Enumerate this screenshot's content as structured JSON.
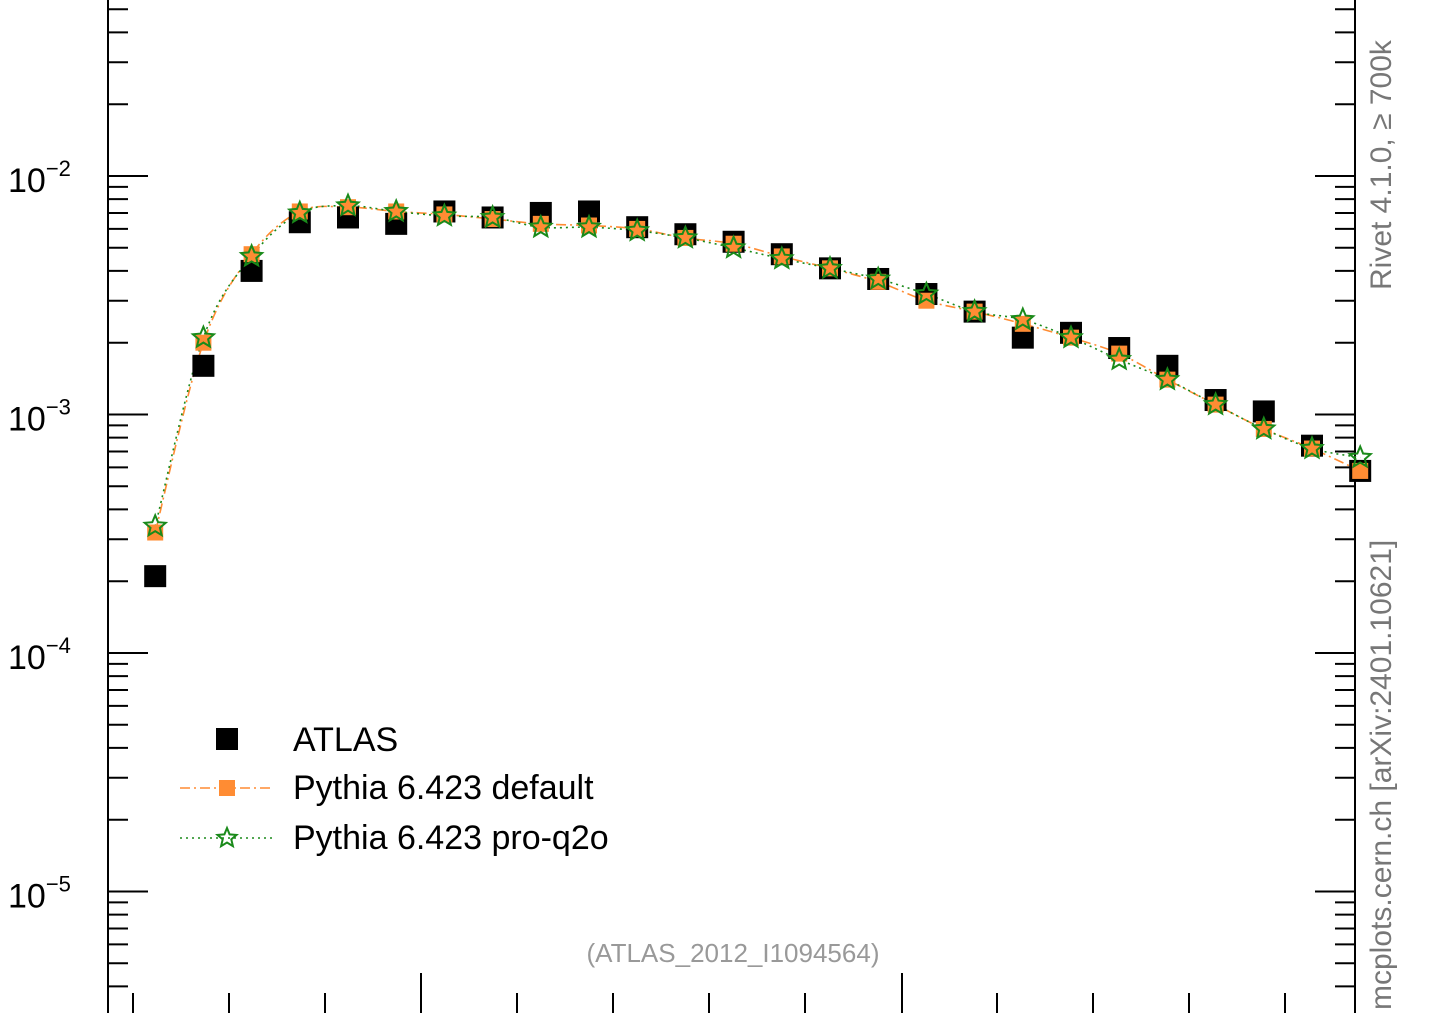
{
  "chart_data": {
    "type": "scatter",
    "yscale": "log",
    "ylim": [
      3.5e-06,
      0.1
    ],
    "xlim": [
      0,
      26.2
    ],
    "y_tick_labels": [
      {
        "value": 0.01,
        "base": "10",
        "exp": "−2"
      },
      {
        "value": 0.001,
        "base": "10",
        "exp": "−3"
      },
      {
        "value": 0.0001,
        "base": "10",
        "exp": "−4"
      },
      {
        "value": 1e-05,
        "base": "10",
        "exp": "−5"
      }
    ],
    "x": [
      1,
      2,
      3,
      4,
      5,
      6,
      7,
      8,
      9,
      10,
      11,
      12,
      13,
      14,
      15,
      16,
      17,
      18,
      19,
      20,
      21,
      22,
      23,
      24,
      25,
      26
    ],
    "series": [
      {
        "name": "ATLAS",
        "color": "#000000",
        "marker": "square",
        "values": [
          0.00021,
          0.0016,
          0.004,
          0.0064,
          0.0067,
          0.0063,
          0.0071,
          0.0067,
          0.007,
          0.0071,
          0.0061,
          0.0057,
          0.0053,
          0.0047,
          0.0041,
          0.0037,
          0.0032,
          0.0027,
          0.0021,
          0.0022,
          0.0019,
          0.0016,
          0.00115,
          0.00103,
          0.00074,
          0.00058
        ]
      },
      {
        "name": "Pythia 6.423 default",
        "color": "#ff8c33",
        "marker": "square",
        "line": "dashdot",
        "values": [
          0.00032,
          0.002,
          0.0047,
          0.0071,
          0.0074,
          0.0071,
          0.0069,
          0.0066,
          0.0063,
          0.0062,
          0.006,
          0.0055,
          0.0052,
          0.0046,
          0.0041,
          0.0036,
          0.003,
          0.0027,
          0.0024,
          0.0021,
          0.0018,
          0.0014,
          0.0011,
          0.00087,
          0.00072,
          0.00058
        ]
      },
      {
        "name": "Pythia 6.423 pro-q2o",
        "color": "#1a8a1a",
        "marker": "star",
        "line": "dotted",
        "values": [
          0.00034,
          0.0021,
          0.0046,
          0.007,
          0.0075,
          0.0071,
          0.0068,
          0.0067,
          0.0061,
          0.0061,
          0.0059,
          0.0055,
          0.005,
          0.0045,
          0.0041,
          0.0037,
          0.0032,
          0.0027,
          0.0025,
          0.0021,
          0.0017,
          0.0014,
          0.0011,
          0.00087,
          0.00072,
          0.00066
        ]
      }
    ],
    "annotation": "(ATLAS_2012_I1094564)",
    "side_label_top": "Rivet 4.1.0, ≥ 700k",
    "side_label_bottom": "mcplots.cern.ch [arXiv:2401.10621]",
    "legend_position": "lower-left",
    "grid": false
  }
}
